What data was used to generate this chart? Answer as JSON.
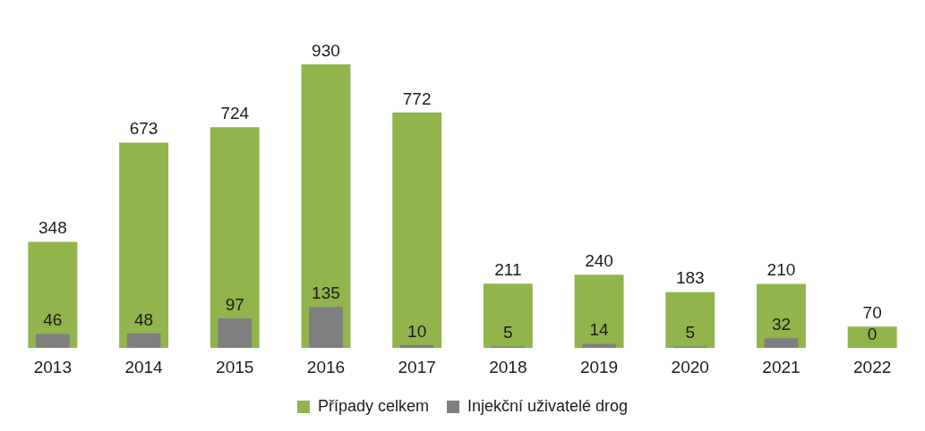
{
  "chart_data": {
    "type": "bar",
    "categories": [
      "2013",
      "2014",
      "2015",
      "2016",
      "2017",
      "2018",
      "2019",
      "2020",
      "2021",
      "2022"
    ],
    "series": [
      {
        "name": "Případy celkem",
        "color": "#92b44c",
        "values": [
          348,
          673,
          724,
          930,
          772,
          211,
          240,
          183,
          210,
          70
        ]
      },
      {
        "name": "Injekční uživatelé drog",
        "color": "#7f7f7f",
        "values": [
          46,
          48,
          97,
          135,
          10,
          5,
          14,
          5,
          32,
          0
        ]
      }
    ],
    "data_labels": true,
    "legend": "bottom",
    "grid": false
  }
}
